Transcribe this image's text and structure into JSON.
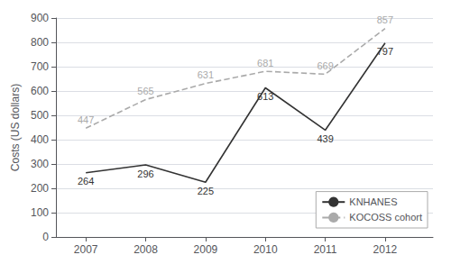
{
  "chart_data": {
    "type": "line",
    "x": [
      2007,
      2008,
      2009,
      2010,
      2011,
      2012
    ],
    "series": [
      {
        "name": "KNHANES",
        "color": "#333333",
        "line_style": "solid",
        "values": [
          264,
          296,
          225,
          613,
          439,
          797
        ]
      },
      {
        "name": "KOCOSS cohort",
        "color": "#aaaaaa",
        "line_style": "dashed",
        "values": [
          447,
          565,
          631,
          681,
          669,
          857
        ]
      }
    ],
    "ylabel": "Costs (US dollars)",
    "xlim": [
      2006.5,
      2012.8
    ],
    "xticks": [
      2007,
      2008,
      2009,
      2010,
      2011,
      2012
    ],
    "ylim": [
      0,
      900
    ],
    "yticks": [
      0,
      100,
      200,
      300,
      400,
      500,
      600,
      700,
      800,
      900
    ],
    "grid": true,
    "legend": "lower right",
    "data_labels": true
  }
}
